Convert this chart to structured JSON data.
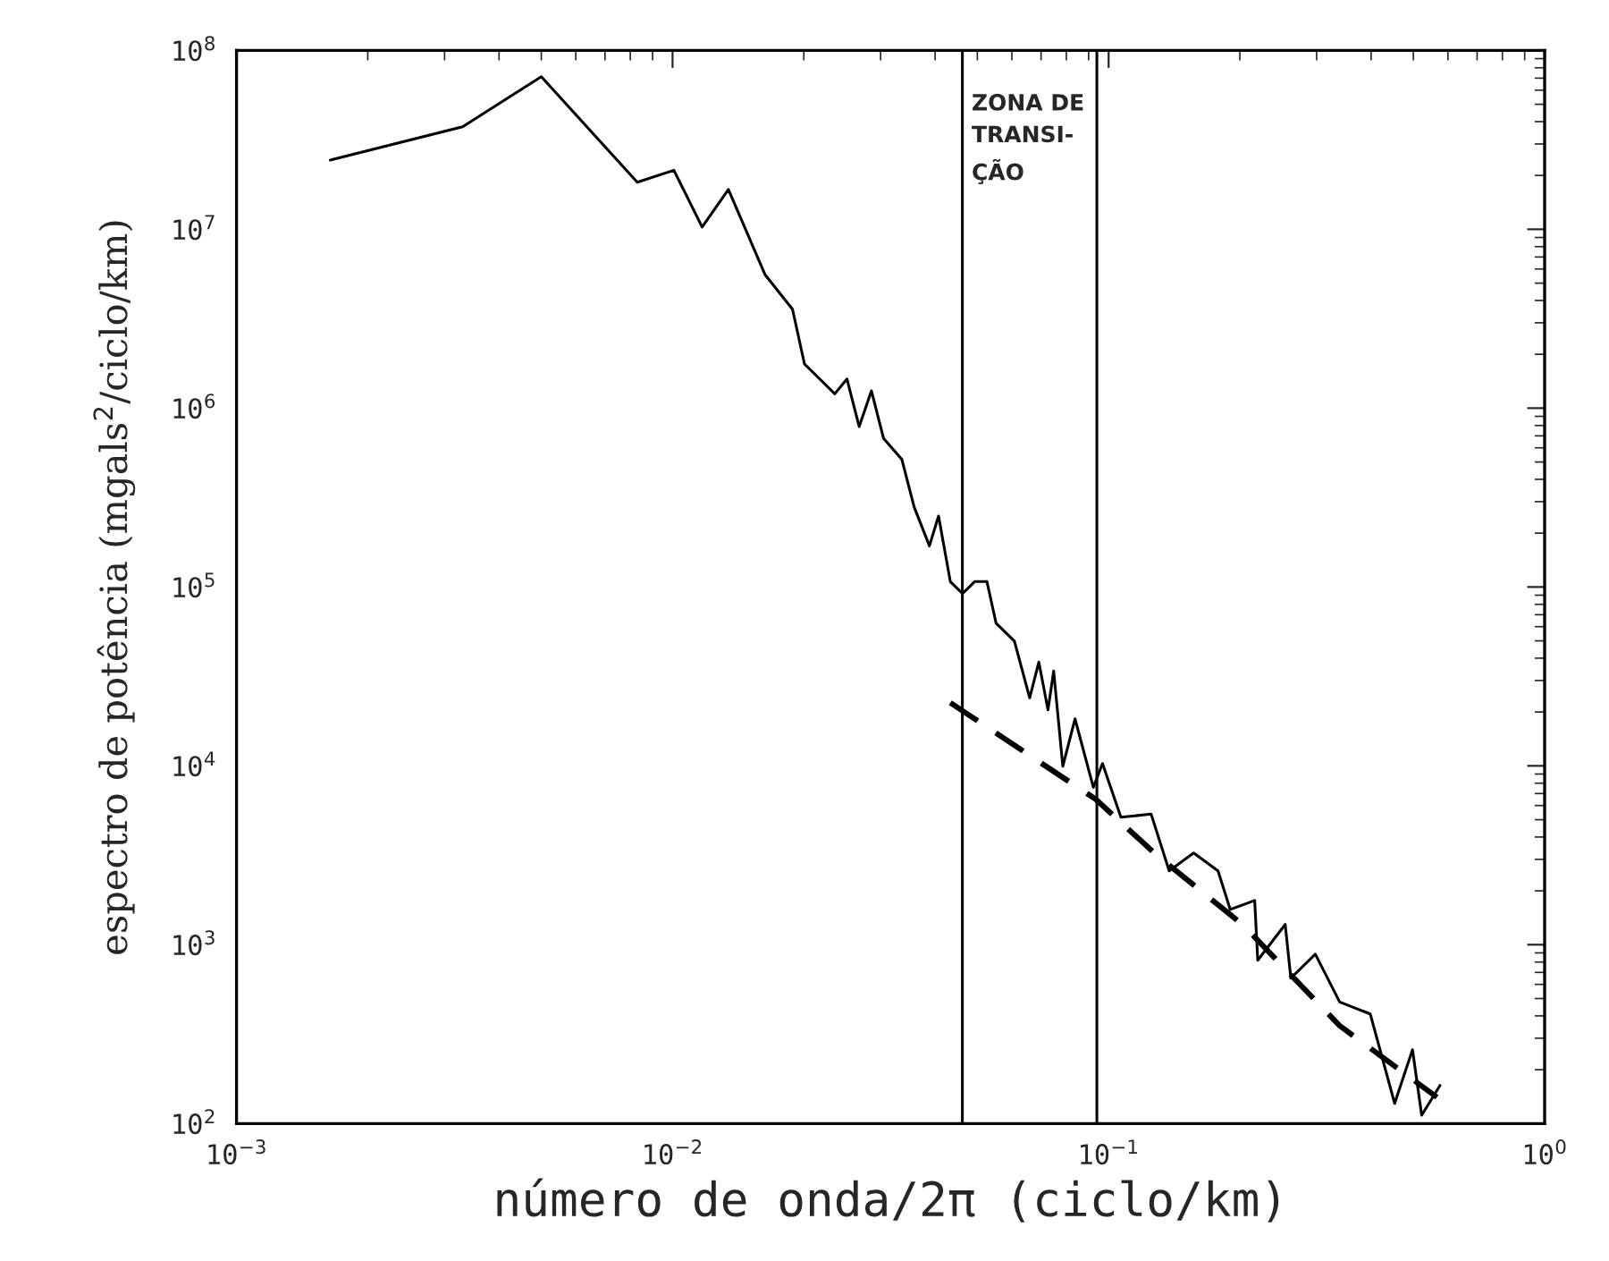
{
  "chart_data": {
    "type": "line",
    "xlabel": "número de onda/2π (ciclo/km)",
    "ylabel": "espectro de potência (mgals$^{2}$/ciclo/km)",
    "log": "xy",
    "grid": false,
    "legend": false,
    "xlim": [
      0.001,
      1
    ],
    "ylim": [
      100,
      100000000
    ],
    "xticks": [
      {
        "value": 0.001,
        "label": "10$^{−3}$"
      },
      {
        "value": 0.01,
        "label": "10$^{−2}$"
      },
      {
        "value": 0.1,
        "label": "10$^{−1}$"
      },
      {
        "value": 1,
        "label": "10$^{0}$"
      }
    ],
    "yticks": [
      {
        "value": 100,
        "label": "10$^{2}$"
      },
      {
        "value": 1000,
        "label": "10$^{3}$"
      },
      {
        "value": 10000,
        "label": "10$^{4}$"
      },
      {
        "value": 100000,
        "label": "10$^{5}$"
      },
      {
        "value": 1000000,
        "label": "10$^{6}$"
      },
      {
        "value": 10000000,
        "label": "10$^{7}$"
      },
      {
        "value": 100000000,
        "label": "10$^{8}$"
      }
    ],
    "series": [
      {
        "color": "#000000",
        "line_style": "solid",
        "x": [
          0.00164,
          0.0033,
          0.005,
          0.0083,
          0.01007,
          0.01169,
          0.01343,
          0.01629,
          0.01884,
          0.02007,
          0.02355,
          0.02512,
          0.02679,
          0.02858,
          0.03048,
          0.03357,
          0.03581,
          0.03882,
          0.04074,
          0.04335,
          0.04624,
          0.04929,
          0.0526,
          0.05521,
          0.06081,
          0.06592,
          0.06918,
          0.07261,
          0.07482,
          0.07852,
          0.08375,
          0.09226,
          0.09683,
          0.1067,
          0.1252,
          0.1377,
          0.1567,
          0.1782,
          0.1901,
          0.2163,
          0.2198,
          0.2541,
          0.2618,
          0.2979,
          0.3388,
          0.3981,
          0.4529,
          0.4977,
          0.5224,
          0.5754
        ],
        "values": [
          24380000,
          37410000,
          71290000,
          18320000,
          21380000,
          10300000,
          16710000,
          5585000,
          3573000,
          1766000,
          1202000,
          1455000,
          788900,
          1250000,
          676100,
          516400,
          280000,
          169800,
          249500,
          107200,
          91830,
          107200,
          107200,
          62660,
          49770,
          23990,
          38020,
          20560,
          33880,
          9931,
          18320,
          7586,
          10300,
          5164,
          5370,
          2588,
          3258,
          2588,
          1574,
          1766,
          818.5,
          1297,
          650.1,
          885.1,
          478.6,
          410.2,
          129.7,
          258.8,
          111.4,
          163.3
        ]
      },
      {
        "color": "#000000",
        "line_style": "dashed",
        "x": [
          0.04335,
          0.09346,
          0.1294,
          0.2028,
          0.3388,
          0.5662
        ],
        "values": [
          22540,
          6501,
          3141,
          1297,
          352.4,
          140.3
        ]
      }
    ],
    "ref_lines": [
      {
        "axis": "x",
        "value": 0.0462,
        "color": "#000000"
      },
      {
        "axis": "x",
        "value": 0.094,
        "color": "#000000"
      }
    ],
    "annotations": [
      "ZONA DE\nTRANSI-\nÇÃO"
    ]
  }
}
